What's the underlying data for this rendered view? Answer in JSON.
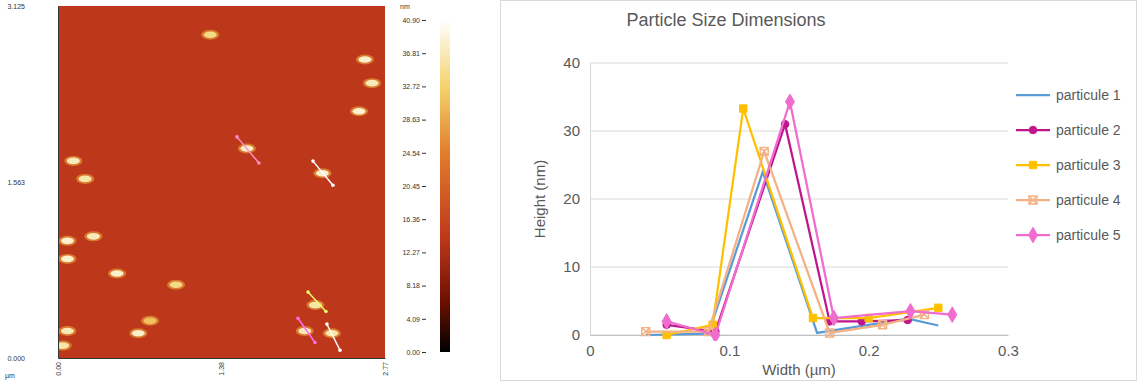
{
  "chart_data": [
    {
      "type": "image",
      "x_label": "µm",
      "xlim": [
        0,
        2.77
      ],
      "xticks": [
        {
          "value": 0,
          "label": "0.00"
        },
        {
          "value": 1.38,
          "label": "1.38"
        },
        {
          "value": 2.77,
          "label": "2.77"
        }
      ],
      "ylim": [
        0,
        3.125
      ],
      "yticks": [
        {
          "value": 0,
          "label": "0.000"
        },
        {
          "value": 1.563,
          "label": "1.563"
        },
        {
          "value": 3.125,
          "label": "3.125"
        }
      ],
      "colorbar": {
        "label": "nm",
        "range": [
          0,
          40.9
        ],
        "ticks": [
          {
            "value": 0,
            "label": "0.00"
          },
          {
            "value": 4.09,
            "label": "4.09"
          },
          {
            "value": 8.18,
            "label": "8.18"
          },
          {
            "value": 12.27,
            "label": "12.27"
          },
          {
            "value": 16.36,
            "label": "16.36"
          },
          {
            "value": 20.45,
            "label": "20.45"
          },
          {
            "value": 24.54,
            "label": "24.54"
          },
          {
            "value": 28.63,
            "label": "28.63"
          },
          {
            "value": 32.72,
            "label": "32.72"
          },
          {
            "value": 36.81,
            "label": "36.81"
          },
          {
            "value": 40.9,
            "label": "40.90"
          }
        ]
      },
      "background_height": 14,
      "spots": [
        {
          "x": 1.29,
          "y": 2.87,
          "height": 34
        },
        {
          "x": 2.6,
          "y": 2.65,
          "height": 38
        },
        {
          "x": 2.66,
          "y": 2.44,
          "height": 37
        },
        {
          "x": 2.55,
          "y": 2.19,
          "height": 38
        },
        {
          "x": 1.6,
          "y": 1.86,
          "height": 38
        },
        {
          "x": 2.24,
          "y": 1.64,
          "height": 38
        },
        {
          "x": 0.13,
          "y": 1.75,
          "height": 37
        },
        {
          "x": 0.23,
          "y": 1.59,
          "height": 36
        },
        {
          "x": 0.08,
          "y": 1.04,
          "height": 38
        },
        {
          "x": 0.3,
          "y": 1.08,
          "height": 37
        },
        {
          "x": 0.08,
          "y": 0.88,
          "height": 38
        },
        {
          "x": 0.5,
          "y": 0.75,
          "height": 38
        },
        {
          "x": 1.0,
          "y": 0.65,
          "height": 34
        },
        {
          "x": 2.18,
          "y": 0.47,
          "height": 36
        },
        {
          "x": 2.09,
          "y": 0.24,
          "height": 37
        },
        {
          "x": 2.32,
          "y": 0.22,
          "height": 36
        },
        {
          "x": 0.08,
          "y": 0.24,
          "height": 37
        },
        {
          "x": 0.68,
          "y": 0.22,
          "height": 38
        },
        {
          "x": 0.78,
          "y": 0.33,
          "height": 31
        },
        {
          "x": 0.04,
          "y": 0.11,
          "height": 36
        }
      ],
      "profiles": [
        {
          "color": "#ff8fc8",
          "x": [
            1.516,
            1.702
          ],
          "y": [
            1.963,
            1.731
          ]
        },
        {
          "color": "#ffffff",
          "x": [
            2.16,
            2.329
          ],
          "y": [
            1.748,
            1.533
          ]
        },
        {
          "color": "#e4ff6a",
          "x": [
            2.118,
            2.27
          ],
          "y": [
            0.585,
            0.413
          ]
        },
        {
          "color": "#ff6cf0",
          "x": [
            2.033,
            2.177
          ],
          "y": [
            0.353,
            0.138
          ]
        },
        {
          "color": "#ffffff",
          "x": [
            2.278,
            2.389
          ],
          "y": [
            0.301,
            0.069
          ]
        }
      ]
    },
    {
      "type": "line",
      "title": "Particle Size Dimensions",
      "x_label": "Width (µm)",
      "y_label": "Height (nm)",
      "xlim": [
        0,
        0.3
      ],
      "xticks": [
        0,
        0.1,
        0.2,
        0.3
      ],
      "ylim": [
        0,
        40
      ],
      "yticks": [
        0,
        10,
        20,
        30,
        40
      ],
      "grid": true,
      "legend": "right",
      "series": [
        {
          "name": "particule 1",
          "color": "#5b9bd5",
          "marker": "none",
          "x": [
            0.04,
            0.085,
            0.124,
            0.163,
            0.2,
            0.228,
            0.25
          ],
          "values": [
            0,
            0.2,
            24,
            0.3,
            1.5,
            2.4,
            1.4
          ]
        },
        {
          "name": "particule 2",
          "color": "#c0168b",
          "marker": "circle",
          "x": [
            0.055,
            0.09,
            0.14,
            0.172,
            0.195,
            0.228
          ],
          "values": [
            1.5,
            0.5,
            31,
            2,
            2,
            2.2
          ]
        },
        {
          "name": "particule 3",
          "color": "#ffc000",
          "marker": "square",
          "x": [
            0.055,
            0.088,
            0.11,
            0.16,
            0.2,
            0.25
          ],
          "values": [
            0,
            1.5,
            33.3,
            2.5,
            2.5,
            4
          ]
        },
        {
          "name": "particule 4",
          "color": "#f4b183",
          "marker": "x",
          "x": [
            0.04,
            0.085,
            0.125,
            0.172,
            0.21,
            0.24
          ],
          "values": [
            0.5,
            0.5,
            27,
            0.3,
            1.5,
            3
          ]
        },
        {
          "name": "particule 5",
          "color": "#f06ccf",
          "marker": "diamond",
          "x": [
            0.055,
            0.09,
            0.1435,
            0.175,
            0.23,
            0.26
          ],
          "values": [
            2,
            0,
            34.3,
            2.5,
            3.5,
            3
          ]
        }
      ]
    }
  ]
}
